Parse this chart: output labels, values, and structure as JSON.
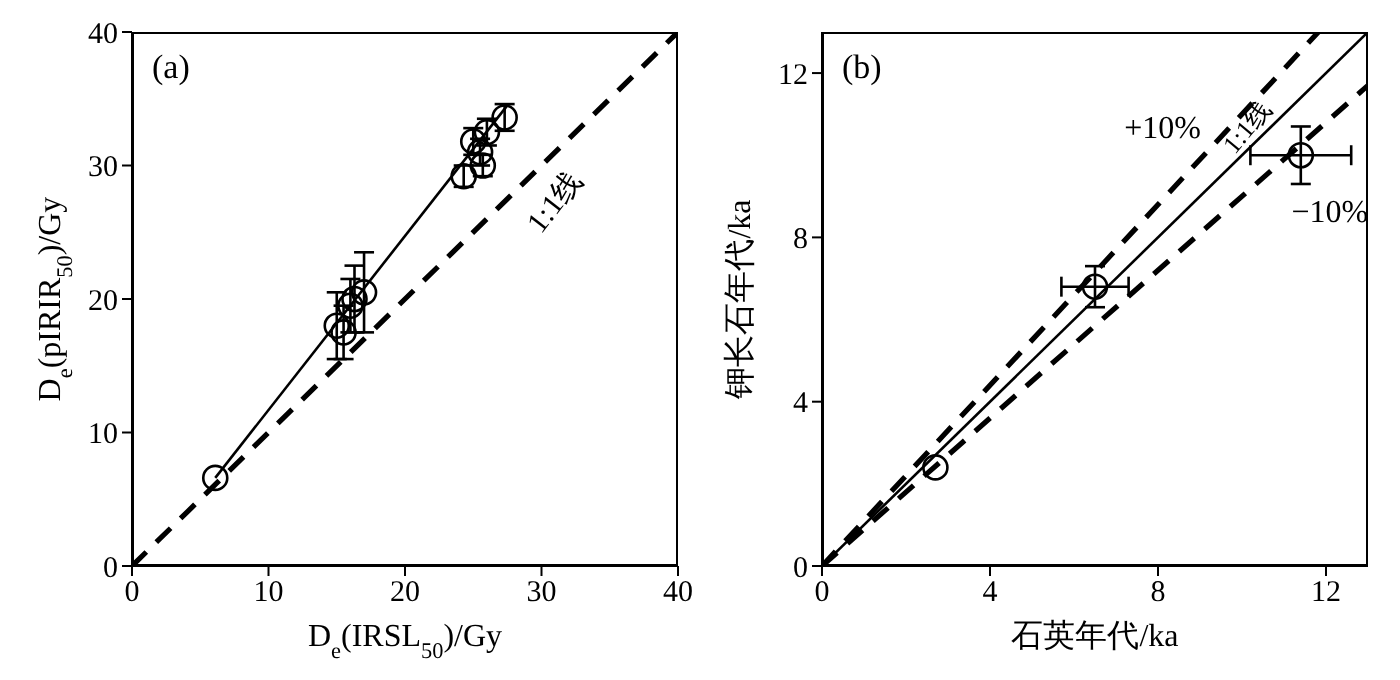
{
  "chart_data": [
    {
      "type": "scatter",
      "title": "(a)",
      "xlabel": "D$_{e}$(IRSL$_{50}$)/Gy",
      "ylabel": "D$_{e}$(pIRIR$_{50}$)/Gy",
      "xlim": [
        0,
        40
      ],
      "ylim": [
        0,
        40
      ],
      "xticks": [
        0,
        10,
        20,
        30,
        40
      ],
      "yticks": [
        0,
        10,
        20,
        30,
        40
      ],
      "annotations": [
        {
          "text": "1:1线",
          "x": 29,
          "y": 29
        }
      ],
      "series": [
        {
          "type": "line",
          "line_style": "dashed",
          "color": "#000000",
          "x": [
            0,
            40
          ],
          "values": [
            0,
            40
          ]
        },
        {
          "type": "line",
          "line_style": "solid",
          "color": "#000000",
          "x": [
            6.1,
            27.5
          ],
          "values": [
            6.6,
            34.5
          ]
        },
        {
          "marker": "circle",
          "color": "#000000",
          "x": [
            6.1,
            15,
            15.5,
            16,
            16.3,
            17,
            24.3,
            25,
            25.5,
            25.7,
            26,
            27.3
          ],
          "values": [
            6.6,
            18,
            17.5,
            19.5,
            20,
            20.5,
            29.2,
            31.8,
            31,
            30,
            32.5,
            33.6
          ],
          "errors": [
            null,
            2.5,
            2,
            2,
            2.5,
            3,
            0.8,
            1,
            1,
            0.8,
            1,
            1
          ]
        }
      ]
    },
    {
      "type": "scatter",
      "title": "(b)",
      "xlabel": "石英年代/ka",
      "ylabel": "钾长石年代/ka",
      "xlim": [
        0,
        13
      ],
      "ylim": [
        0,
        13
      ],
      "xticks": [
        0,
        4,
        8,
        12
      ],
      "yticks": [
        0,
        4,
        8,
        12
      ],
      "annotations": [
        {
          "text": "+10%",
          "x": 9.5,
          "y": 10.45
        },
        "−10%",
        {
          "text": "1:1线",
          "x": 10.4,
          "y": 10.4
        }
      ],
      "series": [
        {
          "type": "line",
          "line_style": "solid",
          "color": "#000000",
          "x": [
            0,
            13
          ],
          "values": [
            0,
            13
          ]
        },
        {
          "type": "line",
          "line_style": "dashed",
          "color": "#000000",
          "x": [
            0,
            11.82
          ],
          "values": [
            0,
            13
          ]
        },
        {
          "type": "line",
          "line_style": "dashed",
          "color": "#000000",
          "x": [
            0,
            13
          ],
          "values": [
            0,
            11.7
          ]
        },
        {
          "marker": "circle",
          "color": "#000000",
          "x": [
            2.7,
            6.5,
            11.4
          ],
          "values": [
            2.4,
            6.8,
            10
          ],
          "errors": [
            null,
            0.5,
            0.7
          ],
          "xerrors": [
            null,
            0.8,
            1.2
          ]
        }
      ]
    }
  ]
}
